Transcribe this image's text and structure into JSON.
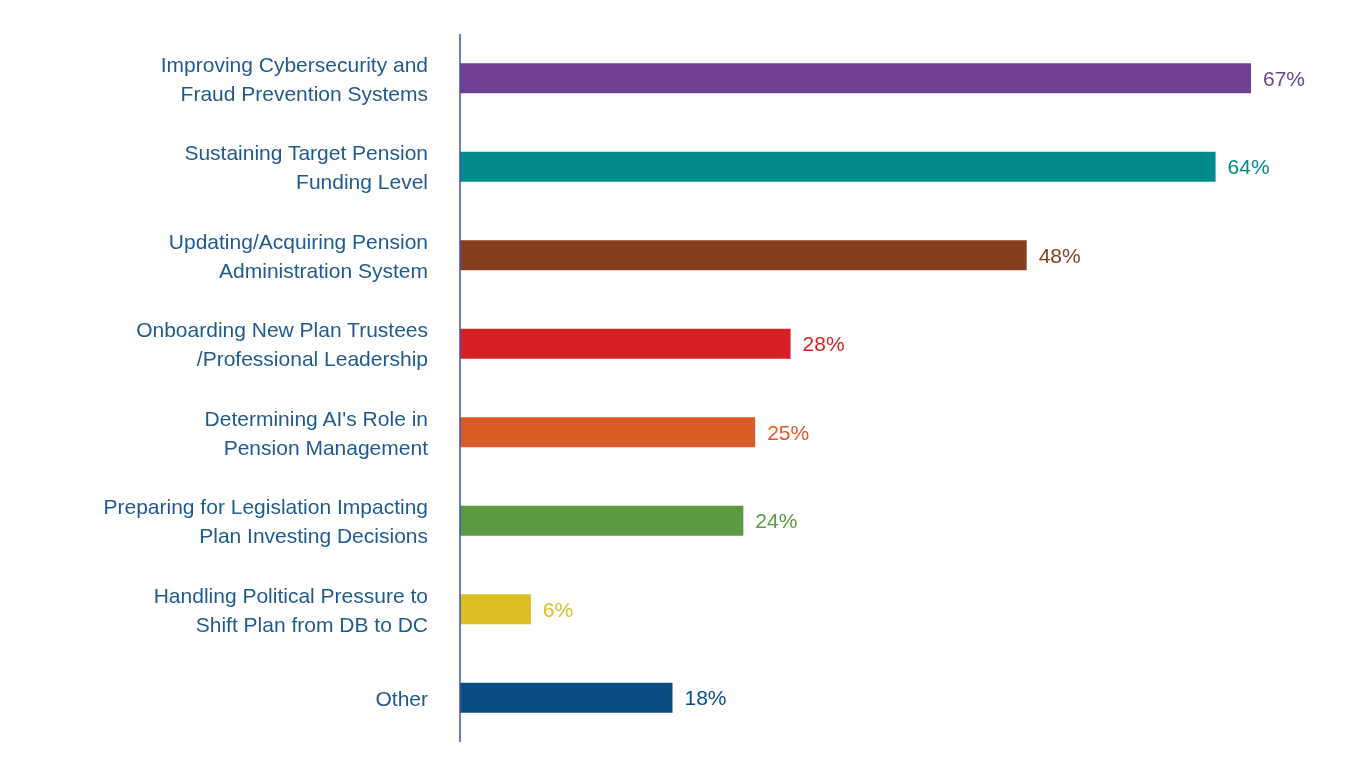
{
  "chart_data": {
    "type": "bar",
    "orientation": "horizontal",
    "categories": [
      "Improving Cybersecurity and\nFraud Prevention Systems",
      "Sustaining Target Pension\nFunding Level",
      "Updating/Acquiring Pension\nAdministration System",
      "Onboarding New Plan Trustees\n/Professional Leadership",
      "Determining AI's Role in\nPension Management",
      "Preparing for Legislation Impacting\nPlan Investing Decisions",
      "Handling Political Pressure to\nShift Plan from DB to DC",
      "Other"
    ],
    "values": [
      67,
      64,
      48,
      28,
      25,
      24,
      6,
      18
    ],
    "colors": [
      "#703f96",
      "#008b8b",
      "#84401e",
      "#d71f27",
      "#dc5a25",
      "#5a9a40",
      "#dbbe24",
      "#0a4d85"
    ],
    "value_labels": [
      "67%",
      "64%",
      "48%",
      "28%",
      "25%",
      "24%",
      "6%",
      "18%"
    ]
  }
}
